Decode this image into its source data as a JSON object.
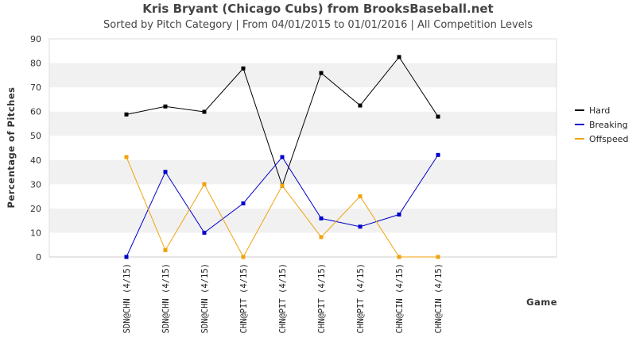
{
  "chart_data": {
    "type": "line",
    "title": "Kris Bryant (Chicago Cubs) from BrooksBaseball.net",
    "subtitle": "Sorted by Pitch Category | From 04/01/2015 to 01/01/2016 | All Competition Levels",
    "xlabel": "Game",
    "ylabel": "Percentage of Pitches",
    "ylim": [
      0,
      90
    ],
    "yticks": [
      0,
      10,
      20,
      30,
      40,
      50,
      60,
      70,
      80,
      90
    ],
    "grid": "alternating horizontal bands",
    "legend_position": "right",
    "categories": [
      "SDN@CHN (4/15)",
      "SDN@CHN (4/15)",
      "SDN@CHN (4/15)",
      "CHN@PIT (4/15)",
      "CHN@PIT (4/15)",
      "CHN@PIT (4/15)",
      "CHN@PIT (4/15)",
      "CHN@CIN (4/15)",
      "CHN@CIN (4/15)"
    ],
    "series": [
      {
        "name": "Hard",
        "color": "#000000",
        "values": [
          58.8,
          62.1,
          59.9,
          77.8,
          29.4,
          75.9,
          62.5,
          82.5,
          57.9
        ]
      },
      {
        "name": "Breaking",
        "color": "#0000cc",
        "values": [
          0,
          35.1,
          10.0,
          22.1,
          41.2,
          15.9,
          12.5,
          17.5,
          42.1
        ]
      },
      {
        "name": "Offspeed",
        "color": "#f0a30a",
        "values": [
          41.2,
          2.8,
          30.0,
          0,
          29.4,
          8.2,
          25.0,
          0,
          0
        ]
      }
    ]
  }
}
